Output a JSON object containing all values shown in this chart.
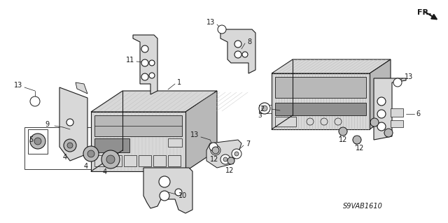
{
  "bg_color": "#ffffff",
  "line_color": "#1a1a1a",
  "diagram_code": "S9VAB1610",
  "figsize": [
    6.4,
    3.19
  ],
  "dpi": 100,
  "gray_light": "#d8d8d8",
  "gray_mid": "#b8b8b8",
  "gray_dark": "#909090",
  "gray_hatch": "#c0c0c0"
}
